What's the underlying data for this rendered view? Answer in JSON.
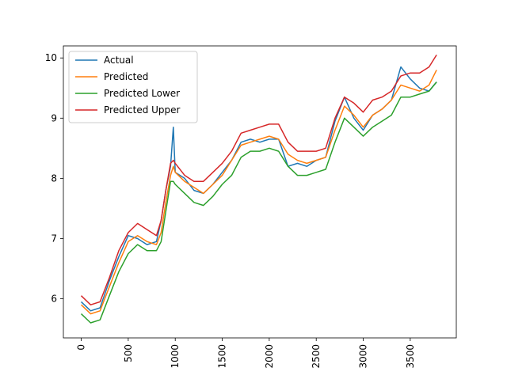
{
  "chart_data": {
    "type": "line",
    "title": "",
    "xlabel": "",
    "ylabel": "",
    "xlim": [
      -190,
      3990
    ],
    "ylim": [
      5.35,
      10.2
    ],
    "xticks": [
      0,
      500,
      1000,
      1500,
      2000,
      2500,
      3000,
      3500
    ],
    "yticks": [
      6,
      7,
      8,
      9,
      10
    ],
    "xtick_labels": [
      "0",
      "500",
      "1000",
      "1500",
      "2000",
      "2500",
      "3000",
      "3500"
    ],
    "ytick_labels": [
      "6",
      "7",
      "8",
      "9",
      "10"
    ],
    "grid": false,
    "legend_position": "top-left",
    "x": [
      0,
      100,
      200,
      300,
      400,
      500,
      600,
      700,
      800,
      850,
      900,
      950,
      980,
      1000,
      1100,
      1200,
      1300,
      1400,
      1500,
      1600,
      1700,
      1800,
      1900,
      2000,
      2100,
      2200,
      2300,
      2400,
      2500,
      2600,
      2700,
      2800,
      2900,
      3000,
      3100,
      3200,
      3300,
      3400,
      3500,
      3600,
      3700,
      3780
    ],
    "series": [
      {
        "name": "Actual",
        "color": "#1f77b4",
        "values": [
          5.95,
          5.8,
          5.85,
          6.3,
          6.7,
          7.05,
          7.0,
          6.9,
          6.95,
          7.3,
          7.8,
          8.2,
          8.85,
          8.1,
          8.0,
          7.8,
          7.75,
          7.9,
          8.1,
          8.3,
          8.6,
          8.65,
          8.6,
          8.65,
          8.65,
          8.2,
          8.25,
          8.2,
          8.3,
          8.35,
          8.95,
          9.35,
          9.0,
          8.8,
          9.05,
          9.15,
          9.3,
          9.85,
          9.65,
          9.5,
          9.45,
          9.6
        ]
      },
      {
        "name": "Predicted",
        "color": "#ff7f0e",
        "values": [
          5.9,
          5.75,
          5.8,
          6.2,
          6.6,
          6.95,
          7.05,
          6.95,
          6.9,
          7.1,
          7.6,
          8.05,
          8.2,
          8.1,
          7.95,
          7.85,
          7.75,
          7.9,
          8.05,
          8.3,
          8.55,
          8.6,
          8.65,
          8.7,
          8.65,
          8.4,
          8.3,
          8.25,
          8.3,
          8.35,
          8.8,
          9.2,
          9.05,
          8.85,
          9.05,
          9.15,
          9.3,
          9.55,
          9.5,
          9.45,
          9.55,
          9.8
        ]
      },
      {
        "name": "Predicted Lower",
        "color": "#2ca02c",
        "values": [
          5.75,
          5.6,
          5.65,
          6.05,
          6.45,
          6.75,
          6.9,
          6.8,
          6.8,
          6.95,
          7.45,
          7.95,
          7.95,
          7.9,
          7.75,
          7.6,
          7.55,
          7.7,
          7.9,
          8.05,
          8.35,
          8.45,
          8.45,
          8.5,
          8.45,
          8.2,
          8.05,
          8.05,
          8.1,
          8.15,
          8.6,
          9.0,
          8.85,
          8.7,
          8.85,
          8.95,
          9.05,
          9.35,
          9.35,
          9.4,
          9.45,
          9.6
        ]
      },
      {
        "name": "Predicted Upper",
        "color": "#d62728",
        "values": [
          6.05,
          5.9,
          5.95,
          6.35,
          6.8,
          7.1,
          7.25,
          7.15,
          7.05,
          7.3,
          7.8,
          8.25,
          8.3,
          8.25,
          8.05,
          7.95,
          7.95,
          8.1,
          8.25,
          8.45,
          8.75,
          8.8,
          8.85,
          8.9,
          8.9,
          8.6,
          8.45,
          8.45,
          8.45,
          8.5,
          9.0,
          9.35,
          9.25,
          9.1,
          9.3,
          9.35,
          9.45,
          9.7,
          9.75,
          9.75,
          9.85,
          10.05
        ]
      }
    ]
  }
}
